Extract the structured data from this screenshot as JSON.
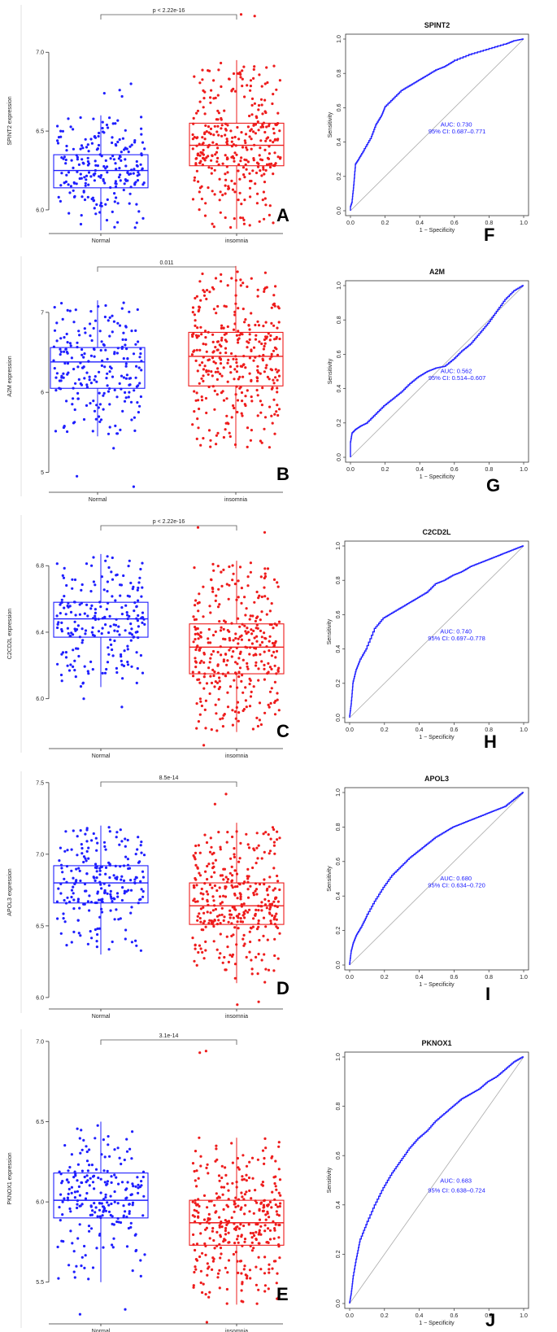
{
  "chart_data": [
    {
      "type": "box",
      "label": "A",
      "gene": "SPINT2",
      "ylabel": "SPINT2 expression",
      "ylim": [
        5.85,
        7.28
      ],
      "yticks": [
        6.0,
        6.5,
        7.0
      ],
      "ytick_labels": [
        "6.0",
        "6.5",
        "7.0"
      ],
      "groups": [
        "Normal",
        "insomnia"
      ],
      "sig_label": "p < 2.22e-16",
      "normal": {
        "q1": 6.14,
        "median": 6.25,
        "q3": 6.35,
        "wlo": 5.87,
        "whi": 6.6,
        "outliers": [
          6.8,
          6.76,
          6.74,
          6.72
        ]
      },
      "insomnia": {
        "q1": 6.28,
        "median": 6.41,
        "q3": 6.55,
        "wlo": 5.88,
        "whi": 6.95,
        "outliers": [
          7.23,
          7.24
        ]
      }
    },
    {
      "type": "roc",
      "label": "F",
      "title": "SPINT2",
      "auc_text": "AUC: 0.730",
      "ci_text": "95% CI: 0.687–0.771",
      "xlabel": "1 − Specificity",
      "ylabel": "Sensitivity",
      "ticks": [
        "0.0",
        "0.2",
        "0.4",
        "0.6",
        "0.8",
        "1.0"
      ],
      "fpr": [
        0,
        0,
        0.01,
        0.02,
        0.03,
        0.05,
        0.08,
        0.12,
        0.15,
        0.18,
        0.2,
        0.25,
        0.3,
        0.35,
        0.4,
        0.45,
        0.5,
        0.55,
        0.6,
        0.7,
        0.8,
        0.9,
        0.95,
        1
      ],
      "tpr": [
        0,
        0.02,
        0.05,
        0.15,
        0.27,
        0.3,
        0.35,
        0.42,
        0.5,
        0.55,
        0.6,
        0.65,
        0.7,
        0.73,
        0.76,
        0.79,
        0.82,
        0.84,
        0.87,
        0.91,
        0.94,
        0.97,
        0.99,
        1
      ]
    },
    {
      "type": "box",
      "label": "B",
      "gene": "A2M",
      "ylabel": "A2M expression",
      "ylim": [
        4.75,
        7.65
      ],
      "yticks": [
        5,
        6,
        7
      ],
      "ytick_labels": [
        "5",
        "6",
        "7"
      ],
      "groups": [
        "Normal",
        "insomnia"
      ],
      "sig_label": "0.011",
      "normal": {
        "q1": 6.05,
        "median": 6.38,
        "q3": 6.56,
        "wlo": 5.45,
        "whi": 7.15,
        "outliers": [
          4.95,
          4.82,
          5.3
        ]
      },
      "insomnia": {
        "q1": 6.08,
        "median": 6.45,
        "q3": 6.75,
        "wlo": 5.3,
        "whi": 7.58,
        "outliers": []
      }
    },
    {
      "type": "roc",
      "label": "G",
      "title": "A2M",
      "auc_text": "AUC: 0.562",
      "ci_text": "95% CI: 0.514–0.607",
      "xlabel": "1 − Specificity",
      "ylabel": "Sensitivity",
      "ticks": [
        "0.0",
        "0.2",
        "0.4",
        "0.6",
        "0.8",
        "1.0"
      ],
      "fpr": [
        0,
        0,
        0.01,
        0.03,
        0.06,
        0.1,
        0.15,
        0.2,
        0.25,
        0.3,
        0.35,
        0.4,
        0.45,
        0.5,
        0.55,
        0.6,
        0.65,
        0.7,
        0.75,
        0.8,
        0.85,
        0.9,
        0.95,
        1
      ],
      "tpr": [
        0,
        0.08,
        0.14,
        0.16,
        0.18,
        0.2,
        0.25,
        0.3,
        0.34,
        0.38,
        0.43,
        0.47,
        0.5,
        0.52,
        0.53,
        0.57,
        0.62,
        0.66,
        0.72,
        0.78,
        0.85,
        0.92,
        0.97,
        1
      ]
    },
    {
      "type": "box",
      "label": "C",
      "gene": "C2CD2L",
      "ylabel": "C2CD2L expression",
      "ylim": [
        5.7,
        7.08
      ],
      "yticks": [
        6.0,
        6.4,
        6.8
      ],
      "ytick_labels": [
        "6.0",
        "6.4",
        "6.8"
      ],
      "groups": [
        "Normal",
        "insomnia"
      ],
      "sig_label": "p < 2.22e-16",
      "normal": {
        "q1": 6.37,
        "median": 6.48,
        "q3": 6.58,
        "wlo": 6.07,
        "whi": 6.87,
        "outliers": [
          5.95,
          6.0
        ]
      },
      "insomnia": {
        "q1": 6.15,
        "median": 6.31,
        "q3": 6.45,
        "wlo": 5.8,
        "whi": 6.83,
        "outliers": [
          7.03,
          7.0,
          5.72
        ]
      }
    },
    {
      "type": "roc",
      "label": "H",
      "title": "C2CD2L",
      "auc_text": "AUC: 0.740",
      "ci_text": "95% CI: 0.697–0.778",
      "xlabel": "1 − Specificity",
      "ylabel": "Sensitivity",
      "ticks": [
        "0.0",
        "0.2",
        "0.4",
        "0.6",
        "0.8",
        "1.0"
      ],
      "fpr": [
        0,
        0.01,
        0.02,
        0.04,
        0.06,
        0.1,
        0.15,
        0.2,
        0.25,
        0.3,
        0.35,
        0.4,
        0.45,
        0.5,
        0.55,
        0.6,
        0.65,
        0.7,
        0.75,
        0.8,
        0.85,
        0.9,
        0.95,
        1
      ],
      "tpr": [
        0,
        0.08,
        0.2,
        0.28,
        0.33,
        0.4,
        0.52,
        0.58,
        0.61,
        0.64,
        0.67,
        0.7,
        0.73,
        0.78,
        0.8,
        0.83,
        0.85,
        0.88,
        0.9,
        0.92,
        0.94,
        0.96,
        0.98,
        1
      ]
    },
    {
      "type": "box",
      "label": "D",
      "gene": "APOL3",
      "ylabel": "APOL3 expression",
      "ylim": [
        5.92,
        7.55
      ],
      "yticks": [
        6.0,
        6.5,
        7.0,
        7.5
      ],
      "ytick_labels": [
        "6.0",
        "6.5",
        "7.0",
        "7.5"
      ],
      "groups": [
        "Normal",
        "insomnia"
      ],
      "sig_label": "8.5e-14",
      "normal": {
        "q1": 6.66,
        "median": 6.8,
        "q3": 6.92,
        "wlo": 6.3,
        "whi": 7.2,
        "outliers": []
      },
      "insomnia": {
        "q1": 6.51,
        "median": 6.64,
        "q3": 6.8,
        "wlo": 6.1,
        "whi": 7.22,
        "outliers": [
          7.42,
          7.35,
          5.95,
          5.97
        ]
      }
    },
    {
      "type": "roc",
      "label": "I",
      "title": "APOL3",
      "auc_text": "AUC: 0.680",
      "ci_text": "95% CI: 0.634–0.720",
      "xlabel": "1 − Specificity",
      "ylabel": "Sensitivity",
      "ticks": [
        "0.0",
        "0.2",
        "0.4",
        "0.6",
        "0.8",
        "1.0"
      ],
      "fpr": [
        0,
        0.01,
        0.02,
        0.04,
        0.07,
        0.1,
        0.15,
        0.2,
        0.25,
        0.3,
        0.35,
        0.4,
        0.45,
        0.5,
        0.55,
        0.6,
        0.65,
        0.7,
        0.75,
        0.8,
        0.85,
        0.9,
        0.95,
        1
      ],
      "tpr": [
        0,
        0.08,
        0.12,
        0.17,
        0.22,
        0.28,
        0.37,
        0.45,
        0.52,
        0.57,
        0.62,
        0.66,
        0.7,
        0.74,
        0.77,
        0.8,
        0.82,
        0.84,
        0.86,
        0.88,
        0.9,
        0.92,
        0.96,
        1
      ]
    },
    {
      "type": "box",
      "label": "E",
      "gene": "PKNOX1",
      "ylabel": "PKNOX1 expression",
      "ylim": [
        5.24,
        7.05
      ],
      "yticks": [
        5.5,
        6.0,
        6.5,
        7.0
      ],
      "ytick_labels": [
        "5.5",
        "6.0",
        "6.5",
        "7.0"
      ],
      "groups": [
        "Normal",
        "insomnia"
      ],
      "sig_label": "3.1e-14",
      "normal": {
        "q1": 5.9,
        "median": 6.01,
        "q3": 6.18,
        "wlo": 5.5,
        "whi": 6.5,
        "outliers": [
          5.3,
          5.33
        ]
      },
      "insomnia": {
        "q1": 5.73,
        "median": 5.87,
        "q3": 6.01,
        "wlo": 5.36,
        "whi": 6.4,
        "outliers": [
          6.94,
          6.93,
          5.25
        ]
      }
    },
    {
      "type": "roc",
      "label": "J",
      "title": "PKNOX1",
      "auc_text": "AUC: 0.683",
      "ci_text": "95% CI: 0.638–0.724",
      "xlabel": "1 − Specificity",
      "ylabel": "Sensitivity",
      "ticks": [
        "0.0",
        "0.2",
        "0.4",
        "0.6",
        "0.8",
        "1.0"
      ],
      "fpr": [
        0,
        0.01,
        0.02,
        0.04,
        0.06,
        0.1,
        0.15,
        0.2,
        0.25,
        0.3,
        0.35,
        0.4,
        0.45,
        0.5,
        0.55,
        0.6,
        0.65,
        0.7,
        0.75,
        0.8,
        0.85,
        0.9,
        0.95,
        1
      ],
      "tpr": [
        0,
        0.04,
        0.1,
        0.18,
        0.25,
        0.32,
        0.4,
        0.47,
        0.53,
        0.58,
        0.63,
        0.67,
        0.7,
        0.74,
        0.77,
        0.8,
        0.83,
        0.85,
        0.87,
        0.9,
        0.92,
        0.95,
        0.98,
        1
      ]
    }
  ],
  "colors": {
    "normal": "#1f1fff",
    "insomnia": "#ee1c1c",
    "roc": "#1f1fff",
    "diag": "#aaaaaa",
    "frame": "#333333"
  }
}
